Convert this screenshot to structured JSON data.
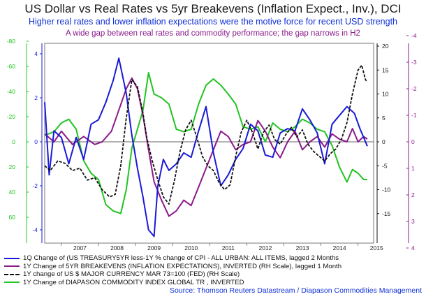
{
  "header": {
    "title": "US Dollar vs Real Rates vs 5yr Breakevens (Inflation Expect., Inv.), DCI",
    "subtitle": "Higher real rates and lower inflation expectations were the motive force for recent USD strength",
    "note": "A wide gap between real rates and commodity performance; the gap narrows in H2"
  },
  "source": "Source: Thomson Reuters Datastream / Diapason Commodities Management",
  "colors": {
    "real_rates": "#1a1ad8",
    "breakevens": "#8b1a8b",
    "usd": "#111111",
    "dci": "#22c322"
  },
  "chart_data": {
    "type": "line",
    "x_range": [
      "2006-07",
      "2015-06"
    ],
    "x_ticks": [
      "2007",
      "2008",
      "2009",
      "2010",
      "2011",
      "2012",
      "2013",
      "2014",
      "2015"
    ],
    "axes": {
      "green_left": {
        "ticks": [
          "-80",
          "-60",
          "-40",
          "-20",
          "0",
          "20",
          "40",
          "60"
        ],
        "inverted": true,
        "ylim": [
          -80,
          80
        ]
      },
      "blue_left": {
        "ticks": [
          "4",
          "2",
          "0",
          "-2",
          "-4"
        ],
        "ylim": [
          -4.5,
          4.5
        ]
      },
      "black_right": {
        "ticks": [
          "20",
          "15",
          "10",
          "5",
          "0",
          "-5",
          "-10",
          "-15"
        ],
        "ylim": [
          -15,
          20
        ]
      },
      "purple_right": {
        "ticks": [
          "-4",
          "-3",
          "-2",
          "-1",
          "0",
          "1",
          "2",
          "3",
          "4"
        ],
        "inverted": true,
        "ylim": [
          -4,
          4
        ]
      }
    },
    "series": [
      {
        "name": "1Q Change of (US TREASURY5YR less-1Y % change of CPI - ALL URBAN: ALL ITEMS, lagged 2 Months",
        "axis": "blue_left",
        "x": [
          2006.55,
          2006.67,
          2006.8,
          2007.0,
          2007.2,
          2007.4,
          2007.6,
          2007.8,
          2008.0,
          2008.2,
          2008.4,
          2008.55,
          2008.75,
          2008.9,
          2009.05,
          2009.2,
          2009.35,
          2009.5,
          2009.6,
          2009.75,
          2009.9,
          2010.1,
          2010.3,
          2010.5,
          2010.7,
          2010.9,
          2011.1,
          2011.3,
          2011.5,
          2011.7,
          2011.9,
          2012.1,
          2012.3,
          2012.5,
          2012.7,
          2012.9,
          2013.1,
          2013.3,
          2013.5,
          2013.7,
          2013.9,
          2014.1,
          2014.3,
          2014.5,
          2014.7,
          2014.9,
          2015.05,
          2015.25
        ],
        "values": [
          1.8,
          -1.5,
          0.5,
          0.2,
          -1.0,
          0.2,
          -0.8,
          0.8,
          1.0,
          1.8,
          2.8,
          3.8,
          2.2,
          0.3,
          -1.2,
          -2.5,
          -4.0,
          -4.3,
          -2.0,
          -0.8,
          -1.3,
          -1.0,
          -0.5,
          -0.7,
          0.5,
          1.6,
          -0.5,
          -2.0,
          -1.5,
          -0.8,
          -0.3,
          0.8,
          0.5,
          -0.6,
          -0.7,
          0.4,
          0.6,
          0.5,
          1.5,
          1.0,
          0.4,
          -1.0,
          0.8,
          1.2,
          1.6,
          1.3,
          0.6,
          -0.2
        ]
      },
      {
        "name": "1Y Change of 5YR BREAKEVENS (INFLATION EXPECTATIONS), INVERTED (RH Scale), lagged 1 Month",
        "axis": "purple_right",
        "x": [
          2006.55,
          2006.8,
          2007.0,
          2007.3,
          2007.6,
          2007.9,
          2008.1,
          2008.35,
          2008.55,
          2008.75,
          2008.9,
          2009.05,
          2009.2,
          2009.35,
          2009.5,
          2009.7,
          2009.9,
          2010.1,
          2010.3,
          2010.5,
          2010.7,
          2010.9,
          2011.1,
          2011.3,
          2011.5,
          2011.7,
          2011.9,
          2012.1,
          2012.3,
          2012.5,
          2012.7,
          2012.9,
          2013.1,
          2013.3,
          2013.5,
          2013.7,
          2013.9,
          2014.1,
          2014.3,
          2014.5,
          2014.7,
          2014.85,
          2015.0,
          2015.15,
          2015.25
        ],
        "values": [
          -0.3,
          0.0,
          -0.4,
          0.1,
          -0.2,
          0.1,
          0.0,
          -0.4,
          -1.2,
          -2.0,
          -2.4,
          -2.0,
          -1.0,
          0.3,
          1.5,
          2.2,
          2.8,
          2.6,
          2.2,
          2.4,
          1.7,
          1.0,
          0.3,
          -0.4,
          -0.2,
          0.3,
          0.1,
          0.0,
          -0.8,
          -0.4,
          0.2,
          0.6,
          0.0,
          -0.4,
          0.3,
          0.0,
          -0.2,
          0.2,
          -0.3,
          -0.1,
          0.0,
          -0.5,
          0.0,
          -0.2,
          -0.1
        ]
      },
      {
        "name": "1Y change of US $ MAJOR CURRENCY MAR 73=100 (FED) (RH Scale)",
        "axis": "black_right",
        "x": [
          2006.55,
          2006.7,
          2006.9,
          2007.1,
          2007.3,
          2007.5,
          2007.7,
          2007.9,
          2008.1,
          2008.3,
          2008.45,
          2008.6,
          2008.75,
          2008.9,
          2009.05,
          2009.2,
          2009.3,
          2009.45,
          2009.6,
          2009.75,
          2009.9,
          2010.05,
          2010.2,
          2010.35,
          2010.5,
          2010.65,
          2010.8,
          2010.95,
          2011.1,
          2011.25,
          2011.4,
          2011.55,
          2011.7,
          2011.85,
          2012.0,
          2012.15,
          2012.3,
          2012.45,
          2012.6,
          2012.75,
          2012.9,
          2013.05,
          2013.2,
          2013.35,
          2013.5,
          2013.65,
          2013.8,
          2013.95,
          2014.1,
          2014.25,
          2014.4,
          2014.55,
          2014.7,
          2014.85,
          2015.0,
          2015.1,
          2015.2,
          2015.25
        ],
        "values": [
          -5.0,
          -6.0,
          -4.0,
          -4.5,
          -6.0,
          -5.5,
          -8.0,
          -7.5,
          -10.0,
          -11.5,
          -11.0,
          -5.0,
          5.0,
          13.0,
          11.5,
          6.0,
          1.0,
          -4.0,
          -8.0,
          -11.5,
          -13.0,
          -8.0,
          -2.0,
          2.5,
          4.5,
          1.0,
          -3.0,
          -5.0,
          -6.0,
          -8.5,
          -10.0,
          -9.0,
          -3.0,
          2.0,
          4.5,
          2.0,
          -1.5,
          2.0,
          3.5,
          0.5,
          -0.5,
          1.5,
          3.0,
          1.0,
          2.5,
          -0.5,
          -2.0,
          -3.0,
          -4.0,
          -2.5,
          -1.5,
          0.5,
          4.0,
          10.0,
          15.0,
          16.0,
          13.0,
          12.5
        ]
      },
      {
        "name": "1Y Change of DIAPASON COMMODITY INDEX GLOBAL TR , INVERTED",
        "axis": "green_left",
        "x": [
          2006.55,
          2006.8,
          2007.0,
          2007.2,
          2007.4,
          2007.6,
          2007.8,
          2008.0,
          2008.2,
          2008.4,
          2008.6,
          2008.75,
          2008.9,
          2009.05,
          2009.2,
          2009.35,
          2009.5,
          2009.7,
          2009.9,
          2010.1,
          2010.3,
          2010.5,
          2010.7,
          2010.9,
          2011.1,
          2011.3,
          2011.5,
          2011.7,
          2011.9,
          2012.1,
          2012.3,
          2012.5,
          2012.7,
          2012.9,
          2013.1,
          2013.3,
          2013.5,
          2013.7,
          2013.9,
          2014.1,
          2014.3,
          2014.5,
          2014.7,
          2014.85,
          2015.0,
          2015.15,
          2015.25
        ],
        "values": [
          -5,
          -8,
          -15,
          -18,
          -10,
          15,
          25,
          30,
          50,
          55,
          57,
          38,
          5,
          -10,
          -25,
          -55,
          -38,
          -35,
          -30,
          -10,
          -8,
          -10,
          -30,
          -45,
          -50,
          -45,
          -38,
          -30,
          -12,
          -10,
          -12,
          0,
          -15,
          -10,
          -8,
          -12,
          -18,
          -15,
          -10,
          -8,
          3,
          20,
          32,
          22,
          25,
          30,
          30
        ]
      }
    ]
  }
}
